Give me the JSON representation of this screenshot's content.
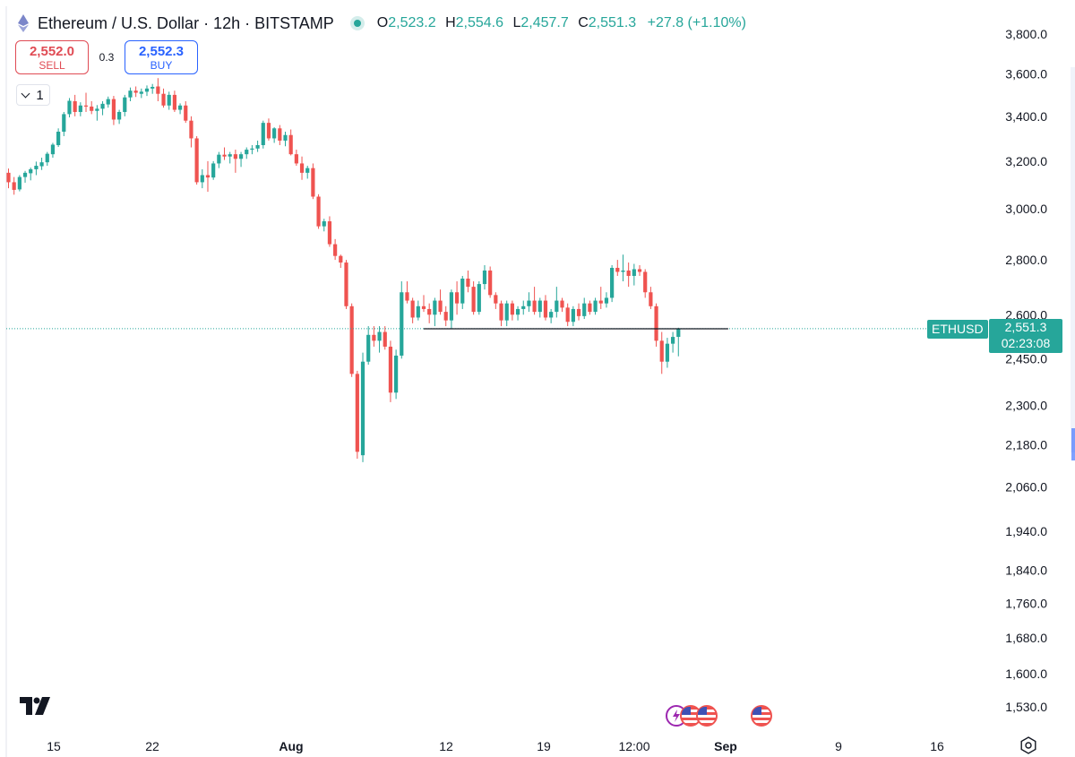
{
  "header": {
    "title": "Ethereum / U.S. Dollar · 12h · BITSTAMP",
    "ohlc": {
      "o_label": "O",
      "o": "2,523.2",
      "h_label": "H",
      "h": "2,554.6",
      "l_label": "L",
      "l": "2,457.7",
      "c_label": "C",
      "c": "2,551.3",
      "change": "+27.8 (+1.10%)"
    }
  },
  "trade": {
    "sell_price": "2,552.0",
    "sell_label": "SELL",
    "spread": "0.3",
    "buy_price": "2,552.3",
    "buy_label": "BUY"
  },
  "collapse_count": "1",
  "last_price": {
    "symbol": "ETHUSD",
    "value": "2,551.3",
    "countdown": "02:23:08"
  },
  "colors": {
    "up": "#26a69a",
    "down": "#ef5350",
    "accent": "#2962ff"
  },
  "chart_data": {
    "type": "candlestick",
    "title": "Ethereum / U.S. Dollar · 12h · BITSTAMP",
    "interval": "12h",
    "y_axis": {
      "position": "right",
      "ticks": [
        "3,800.0",
        "3,600.0",
        "3,400.0",
        "3,200.0",
        "3,000.0",
        "2,800.0",
        "2,600.0",
        "2,450.0",
        "2,300.0",
        "2,180.0",
        "2,060.0",
        "1,940.0",
        "1,840.0",
        "1,760.0",
        "1,680.0",
        "1,600.0",
        "1,530.0"
      ],
      "tick_values": [
        3800,
        3600,
        3400,
        3200,
        3000,
        2800,
        2600,
        2450,
        2300,
        2180,
        2060,
        1940,
        1840,
        1760,
        1680,
        1600,
        1530
      ]
    },
    "x_axis": {
      "ticks": [
        "15",
        "22",
        "Aug",
        "12",
        "19",
        "12:00",
        "Sep",
        "9",
        "16"
      ],
      "bold_ticks": [
        "Aug",
        "Sep"
      ]
    },
    "last_price_line": 2551.3,
    "horizontal_line": {
      "value": 2551,
      "from_candle": 75,
      "to_candle": 130
    },
    "candles": [
      [
        3150,
        3168,
        3085,
        3110
      ],
      [
        3110,
        3132,
        3058,
        3078
      ],
      [
        3080,
        3140,
        3072,
        3132
      ],
      [
        3132,
        3158,
        3108,
        3150
      ],
      [
        3148,
        3172,
        3118,
        3165
      ],
      [
        3165,
        3198,
        3140,
        3180
      ],
      [
        3178,
        3215,
        3162,
        3195
      ],
      [
        3195,
        3240,
        3180,
        3232
      ],
      [
        3230,
        3280,
        3215,
        3272
      ],
      [
        3270,
        3345,
        3262,
        3330
      ],
      [
        3330,
        3420,
        3310,
        3410
      ],
      [
        3410,
        3485,
        3395,
        3472
      ],
      [
        3470,
        3500,
        3400,
        3420
      ],
      [
        3420,
        3465,
        3400,
        3450
      ],
      [
        3450,
        3510,
        3420,
        3445
      ],
      [
        3445,
        3470,
        3410,
        3425
      ],
      [
        3425,
        3452,
        3380,
        3435
      ],
      [
        3435,
        3470,
        3405,
        3458
      ],
      [
        3455,
        3492,
        3440,
        3480
      ],
      [
        3480,
        3495,
        3360,
        3385
      ],
      [
        3385,
        3430,
        3365,
        3420
      ],
      [
        3420,
        3500,
        3400,
        3488
      ],
      [
        3488,
        3535,
        3470,
        3520
      ],
      [
        3520,
        3540,
        3490,
        3510
      ],
      [
        3505,
        3530,
        3485,
        3515
      ],
      [
        3515,
        3545,
        3495,
        3530
      ],
      [
        3530,
        3552,
        3505,
        3538
      ],
      [
        3540,
        3580,
        3470,
        3505
      ],
      [
        3505,
        3530,
        3440,
        3450
      ],
      [
        3450,
        3515,
        3430,
        3500
      ],
      [
        3500,
        3520,
        3420,
        3430
      ],
      [
        3430,
        3460,
        3410,
        3450
      ],
      [
        3450,
        3470,
        3370,
        3380
      ],
      [
        3380,
        3400,
        3260,
        3300
      ],
      [
        3300,
        3310,
        3100,
        3110
      ],
      [
        3110,
        3165,
        3085,
        3140
      ],
      [
        3140,
        3200,
        3070,
        3130
      ],
      [
        3130,
        3200,
        3120,
        3190
      ],
      [
        3190,
        3240,
        3170,
        3228
      ],
      [
        3228,
        3260,
        3205,
        3220
      ],
      [
        3220,
        3240,
        3190,
        3230
      ],
      [
        3230,
        3250,
        3150,
        3210
      ],
      [
        3210,
        3240,
        3175,
        3230
      ],
      [
        3230,
        3260,
        3210,
        3250
      ],
      [
        3250,
        3270,
        3230,
        3255
      ],
      [
        3255,
        3290,
        3240,
        3270
      ],
      [
        3270,
        3380,
        3255,
        3370
      ],
      [
        3370,
        3390,
        3290,
        3300
      ],
      [
        3300,
        3350,
        3280,
        3345
      ],
      [
        3345,
        3360,
        3270,
        3290
      ],
      [
        3290,
        3330,
        3265,
        3315
      ],
      [
        3315,
        3340,
        3225,
        3230
      ],
      [
        3230,
        3250,
        3180,
        3190
      ],
      [
        3190,
        3220,
        3120,
        3150
      ],
      [
        3150,
        3180,
        3125,
        3170
      ],
      [
        3170,
        3190,
        3040,
        3050
      ],
      [
        3050,
        3060,
        2920,
        2930
      ],
      [
        2930,
        2960,
        2910,
        2950
      ],
      [
        2950,
        2970,
        2850,
        2860
      ],
      [
        2860,
        2880,
        2800,
        2815
      ],
      [
        2815,
        2820,
        2770,
        2790
      ],
      [
        2790,
        2800,
        2620,
        2630
      ],
      [
        2630,
        2640,
        2390,
        2400
      ],
      [
        2400,
        2410,
        2140,
        2160
      ],
      [
        2150,
        2470,
        2130,
        2440
      ],
      [
        2440,
        2560,
        2430,
        2530
      ],
      [
        2530,
        2560,
        2490,
        2510
      ],
      [
        2510,
        2560,
        2470,
        2540
      ],
      [
        2540,
        2560,
        2480,
        2490
      ],
      [
        2490,
        2510,
        2310,
        2340
      ],
      [
        2340,
        2480,
        2320,
        2460
      ],
      [
        2460,
        2720,
        2450,
        2680
      ],
      [
        2680,
        2720,
        2640,
        2650
      ],
      [
        2650,
        2660,
        2570,
        2590
      ],
      [
        2590,
        2650,
        2580,
        2630
      ],
      [
        2630,
        2670,
        2610,
        2620
      ],
      [
        2620,
        2640,
        2570,
        2600
      ],
      [
        2600,
        2660,
        2560,
        2650
      ],
      [
        2650,
        2690,
        2600,
        2610
      ],
      [
        2610,
        2630,
        2560,
        2580
      ],
      [
        2580,
        2690,
        2550,
        2680
      ],
      [
        2680,
        2720,
        2600,
        2640
      ],
      [
        2640,
        2740,
        2620,
        2730
      ],
      [
        2730,
        2760,
        2680,
        2700
      ],
      [
        2700,
        2720,
        2600,
        2610
      ],
      [
        2610,
        2720,
        2600,
        2710
      ],
      [
        2710,
        2780,
        2690,
        2760
      ],
      [
        2760,
        2775,
        2660,
        2670
      ],
      [
        2670,
        2680,
        2620,
        2640
      ],
      [
        2640,
        2650,
        2560,
        2580
      ],
      [
        2580,
        2650,
        2560,
        2640
      ],
      [
        2640,
        2650,
        2580,
        2600
      ],
      [
        2600,
        2630,
        2580,
        2620
      ],
      [
        2620,
        2650,
        2600,
        2630
      ],
      [
        2630,
        2680,
        2610,
        2650
      ],
      [
        2650,
        2700,
        2600,
        2610
      ],
      [
        2610,
        2660,
        2590,
        2650
      ],
      [
        2650,
        2670,
        2580,
        2590
      ],
      [
        2590,
        2620,
        2570,
        2610
      ],
      [
        2610,
        2700,
        2590,
        2650
      ],
      [
        2650,
        2660,
        2610,
        2625
      ],
      [
        2625,
        2640,
        2560,
        2575
      ],
      [
        2575,
        2630,
        2560,
        2620
      ],
      [
        2620,
        2640,
        2580,
        2595
      ],
      [
        2595,
        2660,
        2585,
        2640
      ],
      [
        2640,
        2650,
        2600,
        2610
      ],
      [
        2610,
        2660,
        2600,
        2650
      ],
      [
        2650,
        2700,
        2620,
        2640
      ],
      [
        2640,
        2680,
        2625,
        2660
      ],
      [
        2660,
        2780,
        2645,
        2770
      ],
      [
        2770,
        2800,
        2740,
        2755
      ],
      [
        2755,
        2820,
        2720,
        2760
      ],
      [
        2760,
        2790,
        2700,
        2740
      ],
      [
        2740,
        2785,
        2705,
        2765
      ],
      [
        2765,
        2780,
        2740,
        2755
      ],
      [
        2755,
        2765,
        2660,
        2680
      ],
      [
        2680,
        2700,
        2620,
        2630
      ],
      [
        2630,
        2640,
        2490,
        2510
      ],
      [
        2510,
        2540,
        2400,
        2440
      ],
      [
        2440,
        2520,
        2420,
        2500
      ],
      [
        2500,
        2540,
        2470,
        2523
      ],
      [
        2523.2,
        2554.6,
        2457.7,
        2551.3
      ]
    ]
  }
}
